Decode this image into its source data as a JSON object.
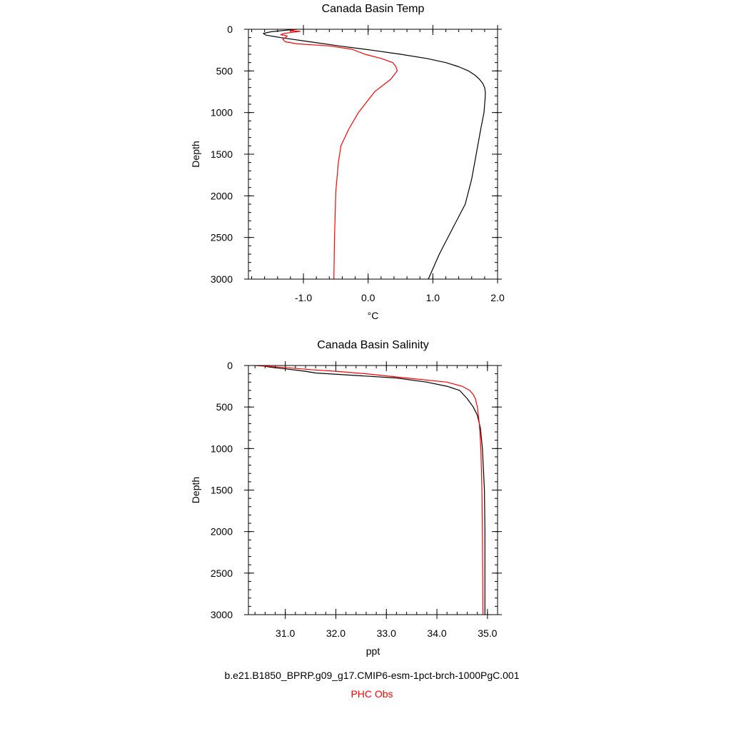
{
  "figure": {
    "caption_model": "b.e21.B1850_BPRP.g09_g17.CMIP6-esm-1pct-brch-1000PgC.001",
    "caption_obs": "PHC Obs",
    "colors": {
      "model": "#000000",
      "obs": "#ff0000"
    }
  },
  "chart_data": [
    {
      "type": "line",
      "title": "Canada Basin Temp",
      "xlabel": "°C",
      "ylabel": "Depth",
      "xlim": [
        -1.85,
        2.0
      ],
      "ylim": [
        0,
        3000
      ],
      "y_inverted": true,
      "xticks": [
        -1.0,
        0.0,
        1.0,
        2.0
      ],
      "xtick_labels": [
        "-1.0",
        "0.0",
        "1.0",
        "2.0"
      ],
      "yticks": [
        0,
        500,
        1000,
        1500,
        2000,
        2500,
        3000
      ],
      "ytick_labels": [
        "0",
        "500",
        "1000",
        "1500",
        "2000",
        "2500",
        "3000"
      ],
      "grid": false,
      "series": [
        {
          "key": "model",
          "color": "#000000",
          "points": [
            [
              -1.1,
              0
            ],
            [
              -1.25,
              10
            ],
            [
              -1.5,
              30
            ],
            [
              -1.62,
              50
            ],
            [
              -1.58,
              70
            ],
            [
              -1.35,
              100
            ],
            [
              -0.9,
              150
            ],
            [
              -0.45,
              200
            ],
            [
              0.05,
              250
            ],
            [
              0.5,
              300
            ],
            [
              0.9,
              350
            ],
            [
              1.2,
              400
            ],
            [
              1.4,
              450
            ],
            [
              1.55,
              500
            ],
            [
              1.65,
              550
            ],
            [
              1.72,
              600
            ],
            [
              1.77,
              650
            ],
            [
              1.8,
              700
            ],
            [
              1.81,
              750
            ],
            [
              1.81,
              800
            ],
            [
              1.79,
              1000
            ],
            [
              1.74,
              1200
            ],
            [
              1.67,
              1500
            ],
            [
              1.6,
              1800
            ],
            [
              1.5,
              2100
            ],
            [
              1.3,
              2400
            ],
            [
              1.1,
              2700
            ],
            [
              0.93,
              3000
            ]
          ]
        },
        {
          "key": "obs",
          "color": "#ff0000",
          "points": [
            [
              -1.12,
              0
            ],
            [
              -1.2,
              20
            ],
            [
              -1.05,
              25
            ],
            [
              -1.3,
              50
            ],
            [
              -1.35,
              65
            ],
            [
              -1.25,
              80
            ],
            [
              -1.28,
              100
            ],
            [
              -1.32,
              120
            ],
            [
              -1.28,
              150
            ],
            [
              -1.1,
              175
            ],
            [
              -0.6,
              200
            ],
            [
              -0.25,
              240
            ],
            [
              -0.05,
              300
            ],
            [
              0.2,
              350
            ],
            [
              0.38,
              400
            ],
            [
              0.43,
              450
            ],
            [
              0.45,
              500
            ],
            [
              0.35,
              600
            ],
            [
              0.1,
              750
            ],
            [
              -0.15,
              1000
            ],
            [
              -0.3,
              1200
            ],
            [
              -0.42,
              1400
            ],
            [
              -0.46,
              1600
            ],
            [
              -0.5,
              1950
            ],
            [
              -0.52,
              2500
            ],
            [
              -0.53,
              3000
            ]
          ]
        }
      ]
    },
    {
      "type": "line",
      "title": "Canada Basin Salinity",
      "xlabel": "ppt",
      "ylabel": "Depth",
      "xlim": [
        30.27,
        35.2
      ],
      "ylim": [
        0,
        3000
      ],
      "y_inverted": true,
      "xticks": [
        31.0,
        32.0,
        33.0,
        34.0,
        35.0
      ],
      "xtick_labels": [
        "31.0",
        "32.0",
        "33.0",
        "34.0",
        "35.0"
      ],
      "yticks": [
        0,
        500,
        1000,
        1500,
        2000,
        2500,
        3000
      ],
      "ytick_labels": [
        "0",
        "500",
        "1000",
        "1500",
        "2000",
        "2500",
        "3000"
      ],
      "grid": false,
      "series": [
        {
          "key": "model",
          "color": "#000000",
          "points": [
            [
              30.5,
              0
            ],
            [
              30.7,
              20
            ],
            [
              31.0,
              40
            ],
            [
              31.4,
              70
            ],
            [
              31.6,
              90
            ],
            [
              32.4,
              120
            ],
            [
              33.2,
              150
            ],
            [
              33.8,
              200
            ],
            [
              34.2,
              250
            ],
            [
              34.45,
              300
            ],
            [
              34.6,
              400
            ],
            [
              34.72,
              500
            ],
            [
              34.8,
              600
            ],
            [
              34.86,
              750
            ],
            [
              34.9,
              1000
            ],
            [
              34.94,
              1500
            ],
            [
              34.95,
              2000
            ],
            [
              34.95,
              3000
            ]
          ]
        },
        {
          "key": "obs",
          "color": "#ff0000",
          "points": [
            [
              30.4,
              0
            ],
            [
              30.9,
              20
            ],
            [
              31.5,
              50
            ],
            [
              32.0,
              70
            ],
            [
              32.6,
              100
            ],
            [
              33.4,
              150
            ],
            [
              34.2,
              200
            ],
            [
              34.5,
              250
            ],
            [
              34.65,
              300
            ],
            [
              34.72,
              350
            ],
            [
              34.76,
              400
            ],
            [
              34.8,
              500
            ],
            [
              34.84,
              700
            ],
            [
              34.87,
              1000
            ],
            [
              34.89,
              1500
            ],
            [
              34.9,
              2000
            ],
            [
              34.91,
              3000
            ]
          ]
        }
      ]
    }
  ]
}
